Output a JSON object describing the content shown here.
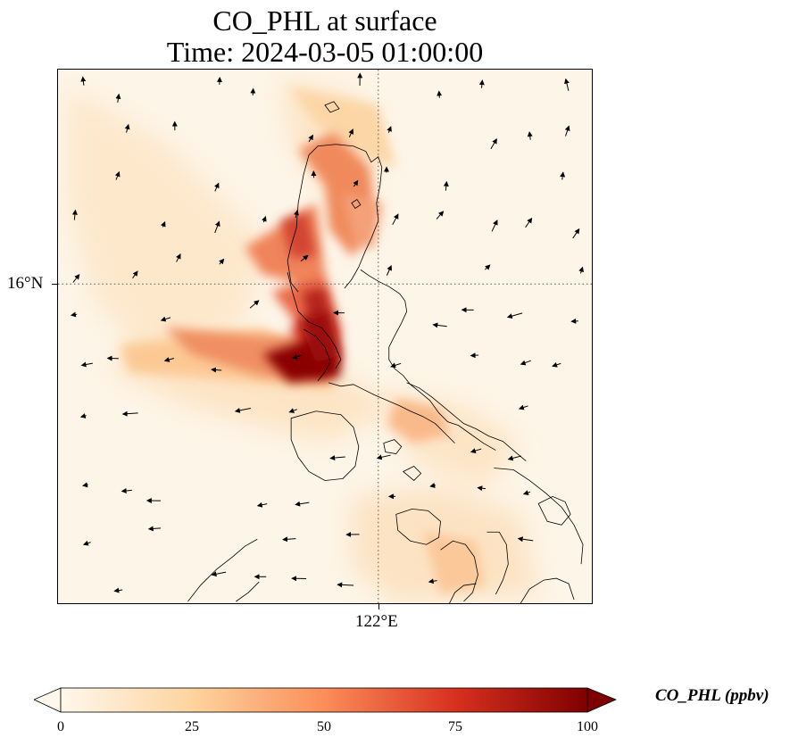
{
  "title": {
    "line1": "CO_PHL at surface",
    "line2": "Time: 2024-03-05 01:00:00"
  },
  "map": {
    "lat_label": "16°N",
    "lon_label": "122°E",
    "gridline_style": "dotted",
    "field": "CO_PHL",
    "background_color": "#fdf5e8",
    "coastline_color": "#000000",
    "wind_vectors": "black arrows"
  },
  "colorbar": {
    "label": "CO_PHL (ppbv)",
    "colormap": "OrRd",
    "extend": "both",
    "ticks": [
      "0",
      "25",
      "50",
      "75",
      "100"
    ],
    "min": 0,
    "max": 100,
    "colors": [
      "#fff7ec",
      "#fdd49e",
      "#fc8d59",
      "#d7301f",
      "#7f0000"
    ]
  }
}
